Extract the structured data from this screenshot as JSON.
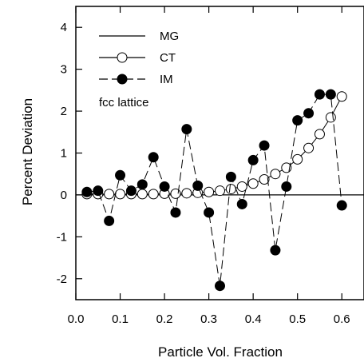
{
  "chart_data": {
    "type": "line",
    "xlabel": "Particle Vol. Fraction",
    "ylabel": "Percent Deviation",
    "xlim": [
      0.0,
      0.65
    ],
    "ylim": [
      -2.5,
      4.5
    ],
    "xticks": [
      0.0,
      0.1,
      0.2,
      0.3,
      0.4,
      0.5,
      0.6
    ],
    "xtick_labels": [
      "0.0",
      "0.1",
      "0.2",
      "0.3",
      "0.4",
      "0.5",
      "0.6"
    ],
    "yticks": [
      -2,
      -1,
      0,
      1,
      2,
      3,
      4
    ],
    "ytick_labels": [
      "-2",
      "-1",
      "0",
      "1",
      "2",
      "3",
      "4"
    ],
    "grid": false,
    "legend_position": "top-left",
    "annotation": "fcc lattice",
    "series": [
      {
        "name": "MG",
        "style": "solid-line",
        "x": [
          0.0,
          0.65
        ],
        "y": [
          0,
          0
        ]
      },
      {
        "name": "CT",
        "style": "line-open-circle",
        "x": [
          0.025,
          0.05,
          0.075,
          0.1,
          0.125,
          0.15,
          0.175,
          0.2,
          0.225,
          0.25,
          0.275,
          0.3,
          0.325,
          0.35,
          0.375,
          0.4,
          0.425,
          0.45,
          0.475,
          0.5,
          0.525,
          0.55,
          0.575,
          0.6
        ],
        "y": [
          0.02,
          0.02,
          0.02,
          0.02,
          0.02,
          0.02,
          0.02,
          0.03,
          0.03,
          0.04,
          0.05,
          0.07,
          0.1,
          0.14,
          0.2,
          0.27,
          0.37,
          0.5,
          0.65,
          0.85,
          1.12,
          1.45,
          1.85,
          2.35
        ]
      },
      {
        "name": "IM",
        "style": "dashed-line-filled-circle",
        "x": [
          0.025,
          0.05,
          0.075,
          0.1,
          0.125,
          0.15,
          0.175,
          0.2,
          0.225,
          0.25,
          0.275,
          0.3,
          0.325,
          0.35,
          0.375,
          0.4,
          0.425,
          0.45,
          0.475,
          0.5,
          0.525,
          0.55,
          0.575,
          0.6
        ],
        "y": [
          0.07,
          0.1,
          -0.62,
          0.47,
          0.1,
          0.25,
          0.9,
          0.2,
          -0.42,
          1.57,
          0.22,
          -0.42,
          -2.17,
          0.43,
          -0.22,
          0.83,
          1.18,
          -1.32,
          0.2,
          1.78,
          1.95,
          2.4,
          2.4,
          -0.25
        ]
      }
    ]
  }
}
